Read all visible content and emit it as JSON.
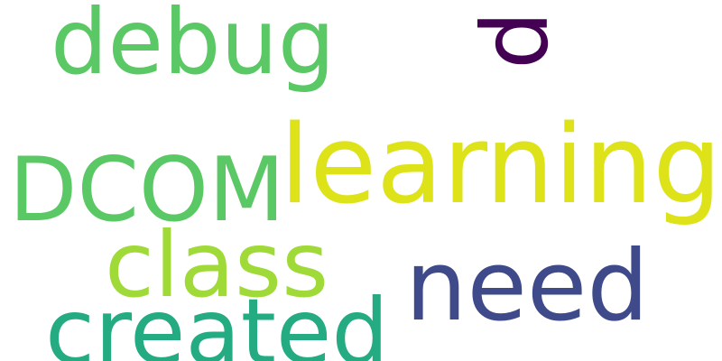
{
  "words": {
    "debug": {
      "text": "debug",
      "color": "#5ac864"
    },
    "p": {
      "text": "p",
      "color": "#440154"
    },
    "learning": {
      "text": "learning",
      "color": "#dde318"
    },
    "dcom": {
      "text": "DCOM",
      "color": "#5ac864"
    },
    "class": {
      "text": "class",
      "color": "#a0da39"
    },
    "need": {
      "text": "need",
      "color": "#3e4a89"
    },
    "created": {
      "text": "created",
      "color": "#25ab82"
    }
  }
}
